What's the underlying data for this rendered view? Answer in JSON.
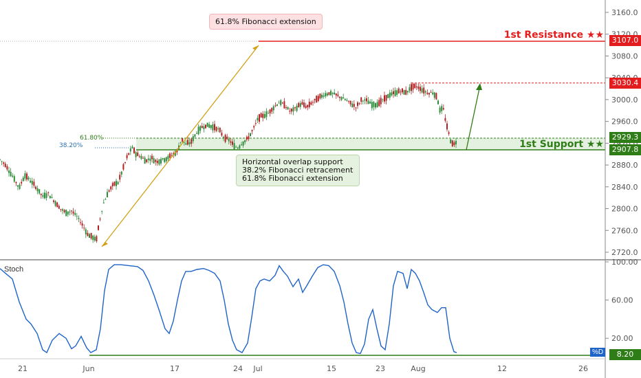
{
  "chart_data": [
    {
      "type": "candlestick",
      "x_axis": {
        "ticks": [
          "21",
          "Jun",
          "17",
          "24",
          "Jul",
          "15",
          "23",
          "Aug",
          "12",
          "26"
        ]
      },
      "y_axis": {
        "ticks": [
          "3160.0",
          "3120.0",
          "3080.0",
          "3040.0",
          "3000.0",
          "2960.0",
          "2920.0",
          "2880.0",
          "2840.0",
          "2800.0",
          "2760.0",
          "2720.0"
        ],
        "ylim": [
          2705,
          3180
        ]
      },
      "price_path": [
        [
          0,
          2890
        ],
        [
          8,
          2880
        ],
        [
          18,
          2860
        ],
        [
          28,
          2838
        ],
        [
          36,
          2862
        ],
        [
          45,
          2850
        ],
        [
          55,
          2835
        ],
        [
          62,
          2822
        ],
        [
          70,
          2828
        ],
        [
          78,
          2815
        ],
        [
          88,
          2800
        ],
        [
          96,
          2792
        ],
        [
          104,
          2796
        ],
        [
          112,
          2785
        ],
        [
          120,
          2770
        ],
        [
          128,
          2752
        ],
        [
          134,
          2748
        ],
        [
          140,
          2742
        ],
        [
          145,
          2778
        ],
        [
          150,
          2808
        ],
        [
          158,
          2832
        ],
        [
          166,
          2845
        ],
        [
          172,
          2848
        ],
        [
          178,
          2870
        ],
        [
          185,
          2895
        ],
        [
          192,
          2912
        ],
        [
          198,
          2900
        ],
        [
          205,
          2895
        ],
        [
          212,
          2888
        ],
        [
          220,
          2893
        ],
        [
          228,
          2886
        ],
        [
          236,
          2890
        ],
        [
          244,
          2893
        ],
        [
          252,
          2900
        ],
        [
          258,
          2905
        ],
        [
          264,
          2928
        ],
        [
          270,
          2918
        ],
        [
          278,
          2922
        ],
        [
          286,
          2940
        ],
        [
          294,
          2950
        ],
        [
          302,
          2953
        ],
        [
          310,
          2950
        ],
        [
          318,
          2945
        ],
        [
          326,
          2930
        ],
        [
          334,
          2925
        ],
        [
          340,
          2915
        ],
        [
          346,
          2912
        ],
        [
          352,
          2920
        ],
        [
          360,
          2928
        ],
        [
          368,
          2945
        ],
        [
          375,
          2965
        ],
        [
          382,
          2970
        ],
        [
          390,
          2975
        ],
        [
          398,
          2986
        ],
        [
          406,
          2995
        ],
        [
          414,
          2990
        ],
        [
          422,
          2978
        ],
        [
          430,
          2984
        ],
        [
          438,
          2993
        ],
        [
          446,
          2986
        ],
        [
          454,
          2995
        ],
        [
          462,
          3002
        ],
        [
          470,
          3008
        ],
        [
          478,
          3012
        ],
        [
          486,
          3010
        ],
        [
          494,
          3005
        ],
        [
          502,
          3000
        ],
        [
          510,
          2993
        ],
        [
          518,
          2986
        ],
        [
          526,
          3000
        ],
        [
          534,
          2997
        ],
        [
          542,
          2990
        ],
        [
          550,
          2993
        ],
        [
          558,
          3000
        ],
        [
          566,
          3008
        ],
        [
          574,
          3012
        ],
        [
          582,
          3016
        ],
        [
          590,
          3013
        ],
        [
          598,
          3022
        ],
        [
          606,
          3024
        ],
        [
          614,
          3018
        ],
        [
          622,
          3012
        ],
        [
          630,
          3013
        ],
        [
          636,
          3003
        ],
        [
          640,
          2978
        ],
        [
          644,
          2987
        ],
        [
          648,
          2960
        ],
        [
          652,
          2940
        ],
        [
          656,
          2922
        ],
        [
          660,
          2917
        ],
        [
          664,
          2925
        ]
      ],
      "annotations": {
        "resistance": {
          "value": 3107.0,
          "value_label": "3107.0",
          "label": "1st Resistance ★★"
        },
        "target": {
          "value": 3030.4,
          "value_label": "3030.4"
        },
        "support_zone": {
          "top": 2929.3,
          "bottom": 2907.8,
          "top_label": "2929.3",
          "bottom_label": "2907.8",
          "label": "1st Support ★★"
        },
        "fib_levels": [
          "61.80%",
          "38.20%"
        ],
        "callout_top": "61.8% Fibonacci extension",
        "callout_support": [
          "Horizontal overlap support",
          "38.2% Fibonacci retracement",
          "61.8% Fibonacci extension"
        ]
      }
    },
    {
      "type": "line",
      "title": "Stoch",
      "y_axis": {
        "ticks": [
          "100.00",
          "60.00",
          "20.00"
        ],
        "ylim": [
          0,
          100
        ]
      },
      "current_value": "8.20",
      "legend": "%D",
      "series": [
        [
          0,
          93
        ],
        [
          8,
          88
        ],
        [
          18,
          82
        ],
        [
          28,
          58
        ],
        [
          38,
          40
        ],
        [
          45,
          35
        ],
        [
          54,
          25
        ],
        [
          62,
          8
        ],
        [
          68,
          5
        ],
        [
          76,
          18
        ],
        [
          86,
          25
        ],
        [
          96,
          20
        ],
        [
          104,
          9
        ],
        [
          110,
          12
        ],
        [
          118,
          22
        ],
        [
          126,
          10
        ],
        [
          132,
          5
        ],
        [
          140,
          8
        ],
        [
          146,
          30
        ],
        [
          152,
          70
        ],
        [
          158,
          92
        ],
        [
          166,
          97
        ],
        [
          176,
          97
        ],
        [
          188,
          96
        ],
        [
          200,
          95
        ],
        [
          208,
          91
        ],
        [
          216,
          80
        ],
        [
          224,
          65
        ],
        [
          232,
          48
        ],
        [
          240,
          30
        ],
        [
          246,
          25
        ],
        [
          252,
          38
        ],
        [
          258,
          60
        ],
        [
          264,
          80
        ],
        [
          270,
          90
        ],
        [
          278,
          90
        ],
        [
          286,
          92
        ],
        [
          296,
          93
        ],
        [
          304,
          91
        ],
        [
          312,
          88
        ],
        [
          320,
          80
        ],
        [
          326,
          60
        ],
        [
          332,
          35
        ],
        [
          338,
          18
        ],
        [
          344,
          8
        ],
        [
          352,
          5
        ],
        [
          360,
          15
        ],
        [
          366,
          42
        ],
        [
          372,
          72
        ],
        [
          378,
          80
        ],
        [
          384,
          82
        ],
        [
          392,
          80
        ],
        [
          400,
          86
        ],
        [
          406,
          96
        ],
        [
          412,
          90
        ],
        [
          418,
          85
        ],
        [
          426,
          74
        ],
        [
          434,
          82
        ],
        [
          440,
          68
        ],
        [
          446,
          75
        ],
        [
          454,
          85
        ],
        [
          462,
          94
        ],
        [
          470,
          97
        ],
        [
          478,
          96
        ],
        [
          486,
          90
        ],
        [
          494,
          75
        ],
        [
          500,
          58
        ],
        [
          506,
          35
        ],
        [
          512,
          15
        ],
        [
          518,
          5
        ],
        [
          524,
          4
        ],
        [
          530,
          14
        ],
        [
          536,
          40
        ],
        [
          542,
          50
        ],
        [
          548,
          30
        ],
        [
          554,
          12
        ],
        [
          560,
          8
        ],
        [
          566,
          35
        ],
        [
          572,
          75
        ],
        [
          578,
          90
        ],
        [
          586,
          88
        ],
        [
          592,
          72
        ],
        [
          598,
          92
        ],
        [
          604,
          88
        ],
        [
          610,
          80
        ],
        [
          616,
          68
        ],
        [
          622,
          55
        ],
        [
          628,
          50
        ],
        [
          636,
          47
        ],
        [
          642,
          52
        ],
        [
          648,
          52
        ],
        [
          654,
          20
        ],
        [
          660,
          6
        ],
        [
          664,
          5
        ]
      ]
    }
  ]
}
